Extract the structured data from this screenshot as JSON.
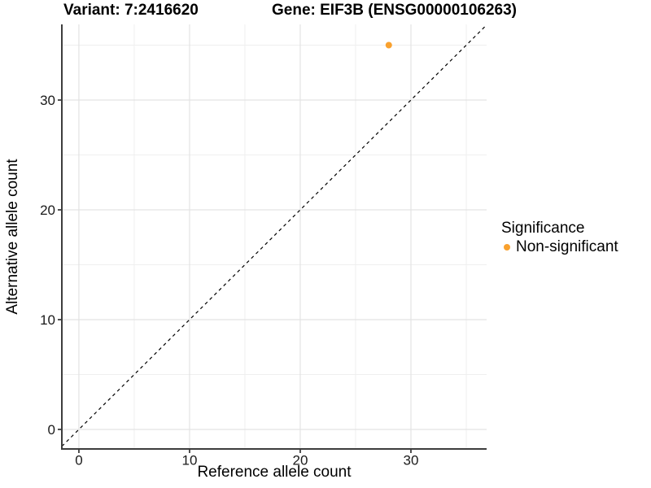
{
  "chart_data": {
    "type": "scatter",
    "titles": {
      "variant": "Variant: 7:2416620",
      "gene": "Gene: EIF3B (ENSG00000106263)"
    },
    "xlabel": "Reference allele count",
    "ylabel": "Alternative allele count",
    "xlim": [
      -1.54,
      36.84
    ],
    "ylim": [
      -1.78,
      36.89
    ],
    "x_ticks": [
      0,
      10,
      20,
      30
    ],
    "y_ticks": [
      0,
      10,
      20,
      30
    ],
    "x_minor_gridlines": [
      5,
      15,
      25,
      35
    ],
    "y_minor_gridlines": [
      5,
      15,
      25,
      35
    ],
    "grid": true,
    "reference_line": {
      "equation": "y = x",
      "style": "dashed",
      "color": "#000000"
    },
    "series": [
      {
        "name": "Non-significant",
        "color": "#F9A12E",
        "points": [
          {
            "x": 28,
            "y": 35
          }
        ]
      }
    ],
    "legend": {
      "position": "right",
      "title": "Significance",
      "items": [
        {
          "label": "Non-significant",
          "color": "#F9A12E"
        }
      ]
    },
    "colors": {
      "point_orange": "#F9A12E",
      "axis_line": "#3d3d3d",
      "tick_label": "#1a1a1a",
      "grid_major": "#e3e3e3",
      "grid_minor": "#efefef",
      "background": "#ffffff"
    }
  }
}
